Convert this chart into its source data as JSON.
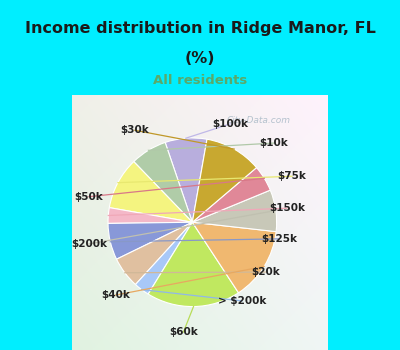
{
  "title_line1": "Income distribution in Ridge Manor, FL",
  "title_line2": "(%)",
  "subtitle": "All residents",
  "title_color": "#1a1a1a",
  "subtitle_color": "#5aaa6a",
  "bg_top": "#00eeff",
  "watermark": "City-Data.com",
  "labels": [
    "$100k",
    "$10k",
    "$75k",
    "$150k",
    "$125k",
    "$20k",
    "> $200k",
    "$60k",
    "$40k",
    "$200k",
    "$50k",
    "$30k"
  ],
  "values": [
    8,
    7,
    10,
    3,
    7,
    6,
    3,
    18,
    14,
    8,
    5,
    11
  ],
  "colors": [
    "#b8aedd",
    "#b0cca8",
    "#f4f480",
    "#f4b8c8",
    "#8898d8",
    "#e0c0a0",
    "#a8c8f8",
    "#c0e860",
    "#f0b870",
    "#c8c8b8",
    "#e08898",
    "#c8a830"
  ],
  "startangle": 80,
  "label_fontsize": 7.5,
  "title_fontsize": 11.5,
  "subtitle_fontsize": 9.5
}
